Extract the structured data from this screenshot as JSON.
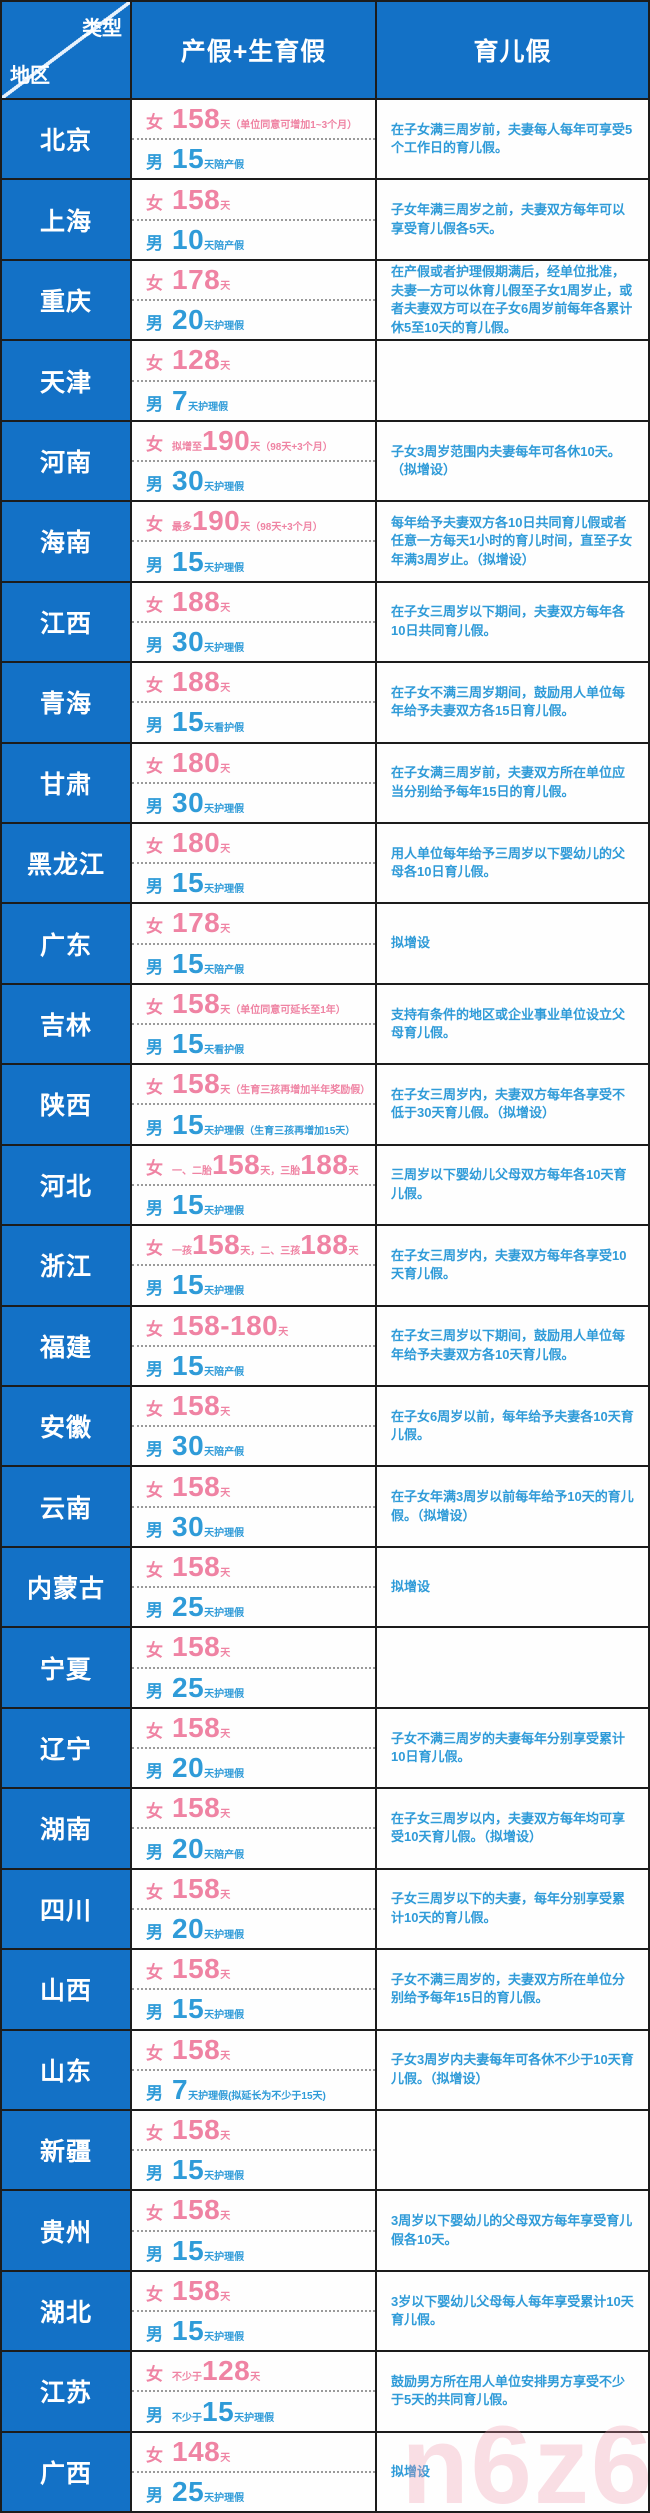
{
  "header": {
    "corner_top": "类型",
    "corner_bottom": "地区",
    "columns": [
      "产假+生育假",
      "育儿假"
    ]
  },
  "labels": {
    "female": "女",
    "male": "男"
  },
  "watermark": "n6z6",
  "colors": {
    "header_blue": "#1371c6",
    "female_pink": "#ef83a3",
    "male_blue": "#2f9bd8",
    "border_dark": "#1c1c1c"
  },
  "rows": [
    {
      "region": "北京",
      "female": [
        [
          "big",
          "158"
        ],
        [
          "tiny",
          "天"
        ],
        [
          "tiny",
          "（单位同意可增加1~3个月）"
        ]
      ],
      "male": [
        [
          "big",
          "15"
        ],
        [
          "tiny",
          "天陪产假"
        ]
      ],
      "parental": "在子女满三周岁前，夫妻每人每年可享受5个工作日的育儿假。"
    },
    {
      "region": "上海",
      "female": [
        [
          "big",
          "158"
        ],
        [
          "tiny",
          "天"
        ]
      ],
      "male": [
        [
          "big",
          "10"
        ],
        [
          "tiny",
          "天陪产假"
        ]
      ],
      "parental": "子女年满三周岁之前，夫妻双方每年可以享受育儿假各5天。"
    },
    {
      "region": "重庆",
      "female": [
        [
          "big",
          "178"
        ],
        [
          "tiny",
          "天"
        ]
      ],
      "male": [
        [
          "big",
          "20"
        ],
        [
          "tiny",
          "天护理假"
        ]
      ],
      "parental": "在产假或者护理假期满后，经单位批准，夫妻一方可以休育儿假至子女1周岁止，或者夫妻双方可以在子女6周岁前每年各累计休5至10天的育儿假。"
    },
    {
      "region": "天津",
      "female": [
        [
          "big",
          "128"
        ],
        [
          "tiny",
          "天"
        ]
      ],
      "male": [
        [
          "big",
          "7"
        ],
        [
          "tiny",
          "天护理假"
        ]
      ],
      "parental": ""
    },
    {
      "region": "河南",
      "female": [
        [
          "tiny",
          "拟增至"
        ],
        [
          "big",
          "190"
        ],
        [
          "tiny",
          "天"
        ],
        [
          "tiny",
          "（98天+3个月）"
        ]
      ],
      "male": [
        [
          "big",
          "30"
        ],
        [
          "tiny",
          "天护理假"
        ]
      ],
      "parental": "子女3周岁范围内夫妻每年可各休10天。（拟增设）"
    },
    {
      "region": "海南",
      "female": [
        [
          "tiny",
          "最多"
        ],
        [
          "big",
          "190"
        ],
        [
          "tiny",
          "天"
        ],
        [
          "tiny",
          "（98天+3个月）"
        ]
      ],
      "male": [
        [
          "big",
          "15"
        ],
        [
          "tiny",
          "天护理假"
        ]
      ],
      "parental": "每年给予夫妻双方各10日共同育儿假或者任意一方每天1小时的育儿时间，直至子女年满3周岁止。（拟增设）"
    },
    {
      "region": "江西",
      "female": [
        [
          "big",
          "188"
        ],
        [
          "tiny",
          "天"
        ]
      ],
      "male": [
        [
          "big",
          "30"
        ],
        [
          "tiny",
          "天护理假"
        ]
      ],
      "parental": "在子女三周岁以下期间，夫妻双方每年各10日共同育儿假。"
    },
    {
      "region": "青海",
      "female": [
        [
          "big",
          "188"
        ],
        [
          "tiny",
          "天"
        ]
      ],
      "male": [
        [
          "big",
          "15"
        ],
        [
          "tiny",
          "天看护假"
        ]
      ],
      "parental": "在子女不满三周岁期间，鼓励用人单位每年给予夫妻双方各15日育儿假。"
    },
    {
      "region": "甘肃",
      "female": [
        [
          "big",
          "180"
        ],
        [
          "tiny",
          "天"
        ]
      ],
      "male": [
        [
          "big",
          "30"
        ],
        [
          "tiny",
          "天护理假"
        ]
      ],
      "parental": "在子女满三周岁前，夫妻双方所在单位应当分别给予每年15日的育儿假。"
    },
    {
      "region": "黑龙江",
      "female": [
        [
          "big",
          "180"
        ],
        [
          "tiny",
          "天"
        ]
      ],
      "male": [
        [
          "big",
          "15"
        ],
        [
          "tiny",
          "天护理假"
        ]
      ],
      "parental": "用人单位每年给予三周岁以下婴幼儿的父母各10日育儿假。"
    },
    {
      "region": "广东",
      "female": [
        [
          "big",
          "178"
        ],
        [
          "tiny",
          "天"
        ]
      ],
      "male": [
        [
          "big",
          "15"
        ],
        [
          "tiny",
          "天陪产假"
        ]
      ],
      "parental": "拟增设"
    },
    {
      "region": "吉林",
      "female": [
        [
          "big",
          "158"
        ],
        [
          "tiny",
          "天"
        ],
        [
          "tiny",
          "（单位同意可延长至1年）"
        ]
      ],
      "male": [
        [
          "big",
          "15"
        ],
        [
          "tiny",
          "天看护假"
        ]
      ],
      "parental": "支持有条件的地区或企业事业单位设立父母育儿假。"
    },
    {
      "region": "陕西",
      "female": [
        [
          "big",
          "158"
        ],
        [
          "tiny",
          "天"
        ],
        [
          "tiny",
          "（生育三孩再增加半年奖励假）"
        ]
      ],
      "male": [
        [
          "big",
          "15"
        ],
        [
          "tiny",
          "天护理假（生育三孩再增加15天）"
        ]
      ],
      "parental": "在子女三周岁内，夫妻双方每年各享受不低于30天育儿假。（拟增设）"
    },
    {
      "region": "河北",
      "female": [
        [
          "tiny",
          "一、二胎"
        ],
        [
          "big",
          "158"
        ],
        [
          "tiny",
          "天，"
        ],
        [
          "tiny",
          "三胎"
        ],
        [
          "big",
          "188"
        ],
        [
          "tiny",
          "天"
        ]
      ],
      "male": [
        [
          "big",
          "15"
        ],
        [
          "tiny",
          "天护理假"
        ]
      ],
      "parental": "三周岁以下婴幼儿父母双方每年各10天育儿假。"
    },
    {
      "region": "浙江",
      "female": [
        [
          "tiny",
          "一孩"
        ],
        [
          "big",
          "158"
        ],
        [
          "tiny",
          "天，"
        ],
        [
          "tiny",
          "二、三孩"
        ],
        [
          "big",
          "188"
        ],
        [
          "tiny",
          "天"
        ]
      ],
      "male": [
        [
          "big",
          "15"
        ],
        [
          "tiny",
          "天护理假"
        ]
      ],
      "parental": "在子女三周岁内，夫妻双方每年各享受10天育儿假。"
    },
    {
      "region": "福建",
      "female": [
        [
          "big",
          "158-180"
        ],
        [
          "tiny",
          "天"
        ]
      ],
      "male": [
        [
          "big",
          "15"
        ],
        [
          "tiny",
          "天陪产假"
        ]
      ],
      "parental": "在子女三周岁以下期间，鼓励用人单位每年给予夫妻双方各10天育儿假。"
    },
    {
      "region": "安徽",
      "female": [
        [
          "big",
          "158"
        ],
        [
          "tiny",
          "天"
        ]
      ],
      "male": [
        [
          "big",
          "30"
        ],
        [
          "tiny",
          "天陪产假"
        ]
      ],
      "parental": "在子女6周岁以前，每年给予夫妻各10天育儿假。"
    },
    {
      "region": "云南",
      "female": [
        [
          "big",
          "158"
        ],
        [
          "tiny",
          "天"
        ]
      ],
      "male": [
        [
          "big",
          "30"
        ],
        [
          "tiny",
          "天护理假"
        ]
      ],
      "parental": "在子女年满3周岁以前每年给予10天的育儿假。（拟增设）"
    },
    {
      "region": "内蒙古",
      "female": [
        [
          "big",
          "158"
        ],
        [
          "tiny",
          "天"
        ]
      ],
      "male": [
        [
          "big",
          "25"
        ],
        [
          "tiny",
          "天护理假"
        ]
      ],
      "parental": "拟增设"
    },
    {
      "region": "宁夏",
      "female": [
        [
          "big",
          "158"
        ],
        [
          "tiny",
          "天"
        ]
      ],
      "male": [
        [
          "big",
          "25"
        ],
        [
          "tiny",
          "天护理假"
        ]
      ],
      "parental": ""
    },
    {
      "region": "辽宁",
      "female": [
        [
          "big",
          "158"
        ],
        [
          "tiny",
          "天"
        ]
      ],
      "male": [
        [
          "big",
          "20"
        ],
        [
          "tiny",
          "天护理假"
        ]
      ],
      "parental": "子女不满三周岁的夫妻每年分别享受累计10日育儿假。"
    },
    {
      "region": "湖南",
      "female": [
        [
          "big",
          "158"
        ],
        [
          "tiny",
          "天"
        ]
      ],
      "male": [
        [
          "big",
          "20"
        ],
        [
          "tiny",
          "天陪产假"
        ]
      ],
      "parental": "在子女三周岁以内，夫妻双方每年均可享受10天育儿假。（拟增设）"
    },
    {
      "region": "四川",
      "female": [
        [
          "big",
          "158"
        ],
        [
          "tiny",
          "天"
        ]
      ],
      "male": [
        [
          "big",
          "20"
        ],
        [
          "tiny",
          "天护理假"
        ]
      ],
      "parental": "子女三周岁以下的夫妻，每年分别享受累计10天的育儿假。"
    },
    {
      "region": "山西",
      "female": [
        [
          "big",
          "158"
        ],
        [
          "tiny",
          "天"
        ]
      ],
      "male": [
        [
          "big",
          "15"
        ],
        [
          "tiny",
          "天护理假"
        ]
      ],
      "parental": "子女不满三周岁的，夫妻双方所在单位分别给予每年15日的育儿假。"
    },
    {
      "region": "山东",
      "female": [
        [
          "big",
          "158"
        ],
        [
          "tiny",
          "天"
        ]
      ],
      "male": [
        [
          "big",
          "7"
        ],
        [
          "tiny",
          "天护理假(拟延长为不少于15天)"
        ]
      ],
      "parental": "子女3周岁内夫妻每年可各休不少于10天育儿假。（拟增设）"
    },
    {
      "region": "新疆",
      "female": [
        [
          "big",
          "158"
        ],
        [
          "tiny",
          "天"
        ]
      ],
      "male": [
        [
          "big",
          "15"
        ],
        [
          "tiny",
          "天护理假"
        ]
      ],
      "parental": ""
    },
    {
      "region": "贵州",
      "female": [
        [
          "big",
          "158"
        ],
        [
          "tiny",
          "天"
        ]
      ],
      "male": [
        [
          "big",
          "15"
        ],
        [
          "tiny",
          "天护理假"
        ]
      ],
      "parental": "3周岁以下婴幼儿的父母双方每年享受育儿假各10天。"
    },
    {
      "region": "湖北",
      "female": [
        [
          "big",
          "158"
        ],
        [
          "tiny",
          "天"
        ]
      ],
      "male": [
        [
          "big",
          "15"
        ],
        [
          "tiny",
          "天护理假"
        ]
      ],
      "parental": "3岁以下婴幼儿父母每人每年享受累计10天育儿假。"
    },
    {
      "region": "江苏",
      "female": [
        [
          "tiny",
          "不少于"
        ],
        [
          "big",
          "128"
        ],
        [
          "tiny",
          "天"
        ]
      ],
      "male": [
        [
          "tiny",
          "不少于"
        ],
        [
          "big",
          "15"
        ],
        [
          "tiny",
          "天护理假"
        ]
      ],
      "parental": "鼓励男方所在用人单位安排男方享受不少于5天的共同育儿假。"
    },
    {
      "region": "广西",
      "female": [
        [
          "big",
          "148"
        ],
        [
          "tiny",
          "天"
        ]
      ],
      "male": [
        [
          "big",
          "25"
        ],
        [
          "tiny",
          "天护理假"
        ]
      ],
      "parental": "拟增设"
    }
  ]
}
